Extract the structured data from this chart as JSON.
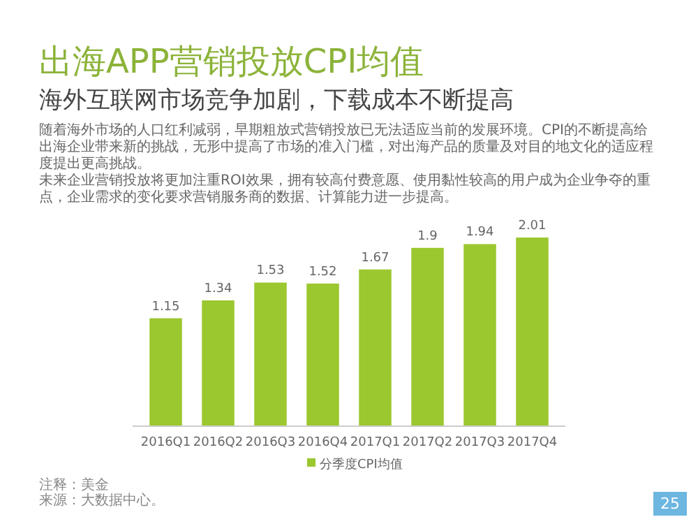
{
  "chart_data": {
    "type": "bar",
    "title": "出海APP营销投放CPI均值",
    "subtitle": "海外互联网市场竞争加剧，下载成本不断提高",
    "categories": [
      "2016Q1",
      "2016Q2",
      "2016Q3",
      "2016Q4",
      "2017Q1",
      "2017Q2",
      "2017Q3",
      "2017Q4"
    ],
    "series": [
      {
        "name": "分季度CPI均值",
        "color": "#9bc72f",
        "values": [
          1.15,
          1.34,
          1.53,
          1.52,
          1.67,
          1.9,
          1.94,
          2.01
        ]
      }
    ],
    "data_labels": true,
    "legend": "bottom",
    "annotations": [
      "随着海外市场的人口红利减弱，早期粗放式营销投放已无法适应当前的发展环境。CPI的不断提高给出海企业带来新的挑战，无形中提高了市场的准入门槛，对出海产品的质量及对目的地文化的适应程度提出更高挑战。",
      "未来企业营销投放将更加注重ROI效果，拥有较高付费意愿、使用黏性较高的用户成为企业争夺的重点，企业需求的变化要求营销服务商的数据、计算能力进一步提高。",
      "注释：美金",
      "来源：大数据中心。",
      "25"
    ]
  }
}
